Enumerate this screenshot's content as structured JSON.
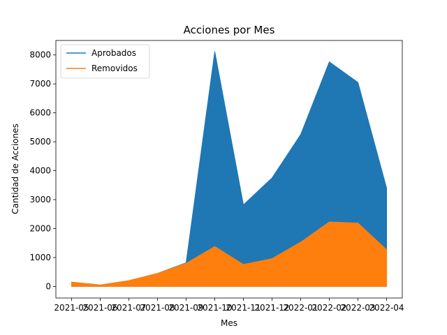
{
  "chart_data": {
    "type": "area",
    "title": "Acciones por Mes",
    "xlabel": "Mes",
    "ylabel": "Cantidad de Acciones",
    "categories": [
      "2021-05",
      "2021-06",
      "2021-07",
      "2021-08",
      "2021-09",
      "2021-10",
      "2021-11",
      "2021-12",
      "2022-01",
      "2022-02",
      "2022-03",
      "2022-04"
    ],
    "ylim": [
      -400,
      8500
    ],
    "yticks": [
      0,
      1000,
      2000,
      3000,
      4000,
      5000,
      6000,
      7000,
      8000
    ],
    "series": [
      {
        "name": "Aprobados",
        "color": "#1f77b4",
        "values": [
          150,
          50,
          200,
          450,
          820,
          8120,
          2820,
          3750,
          5250,
          7760,
          7050,
          3400
        ]
      },
      {
        "name": "Removidos",
        "color": "#ff7f0e",
        "values": [
          150,
          50,
          200,
          450,
          800,
          1380,
          760,
          960,
          1530,
          2230,
          2190,
          1270
        ]
      }
    ],
    "grid": false,
    "legend_position": "top-left"
  }
}
